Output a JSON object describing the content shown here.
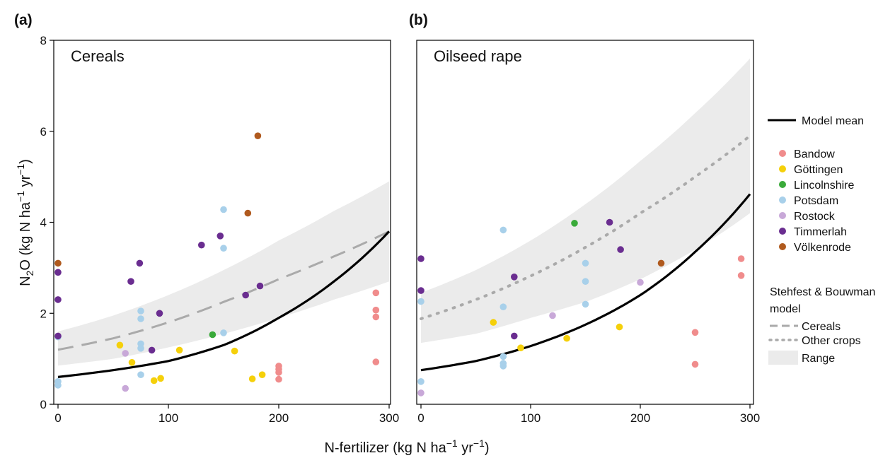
{
  "chart_data": [
    {
      "type": "scatter",
      "panel_label": "(a)",
      "title": "Cereals",
      "xlim": [
        0,
        300
      ],
      "ylim": [
        0,
        8
      ],
      "xticks": [
        "0",
        "100",
        "200",
        "300"
      ],
      "yticks": [
        "0",
        "2",
        "4",
        "6",
        "8"
      ],
      "grid": false,
      "series": [
        {
          "name": "Bandow",
          "color": "#f08c8c",
          "x": [
            288,
            288,
            288,
            288,
            200,
            200,
            200,
            200
          ],
          "y": [
            2.45,
            2.07,
            1.92,
            0.93,
            0.84,
            0.77,
            0.7,
            0.55
          ]
        },
        {
          "name": "Göttingen",
          "color": "#f5d00a",
          "x": [
            56,
            67,
            87,
            93,
            110,
            160,
            176,
            185
          ],
          "y": [
            1.3,
            0.92,
            0.52,
            0.57,
            1.19,
            1.17,
            0.56,
            0.65
          ]
        },
        {
          "name": "Lincolnshire",
          "color": "#3aaa3a",
          "x": [
            140
          ],
          "y": [
            1.53
          ]
        },
        {
          "name": "Potsdam",
          "color": "#a8d0ea",
          "x": [
            0,
            0,
            0,
            75,
            75,
            75,
            75,
            75,
            150,
            150,
            150
          ],
          "y": [
            0.5,
            0.42,
            1.48,
            2.05,
            1.88,
            1.33,
            1.23,
            0.65,
            4.28,
            3.43,
            1.57
          ]
        },
        {
          "name": "Rostock",
          "color": "#c8a8d8",
          "x": [
            61,
            61
          ],
          "y": [
            1.12,
            0.35
          ]
        },
        {
          "name": "Timmerlah",
          "color": "#6a2d90",
          "x": [
            0,
            0,
            0,
            66,
            74,
            85,
            92,
            130,
            147,
            170,
            183
          ],
          "y": [
            2.9,
            2.3,
            1.5,
            2.7,
            3.1,
            1.19,
            2.0,
            3.5,
            3.7,
            2.4,
            2.6
          ]
        },
        {
          "name": "Völkenrode",
          "color": "#b05a1e",
          "x": [
            0,
            172,
            181
          ],
          "y": [
            3.1,
            4.2,
            5.9
          ]
        }
      ],
      "model_mean": {
        "name": "Model mean",
        "x": [
          0,
          50,
          100,
          150,
          200,
          250,
          300
        ],
        "y": [
          0.6,
          0.75,
          0.95,
          1.3,
          1.9,
          2.7,
          3.8
        ]
      },
      "reference_curve": {
        "name": "Cereals",
        "x": [
          0,
          50,
          100,
          150,
          200,
          250,
          300
        ],
        "y": [
          1.2,
          1.45,
          1.8,
          2.25,
          2.75,
          3.25,
          3.8
        ]
      },
      "range_band": {
        "name": "Range",
        "x": [
          0,
          50,
          100,
          150,
          200,
          250,
          300
        ],
        "upper": [
          1.6,
          1.95,
          2.4,
          2.95,
          3.6,
          4.25,
          4.9
        ],
        "lower": [
          0.85,
          1.0,
          1.25,
          1.55,
          1.9,
          2.3,
          2.7
        ]
      }
    },
    {
      "type": "scatter",
      "panel_label": "(b)",
      "title": "Oilseed rape",
      "xlim": [
        0,
        300
      ],
      "ylim": [
        0,
        8
      ],
      "xticks": [
        "0",
        "100",
        "200",
        "300"
      ],
      "yticks": [
        "0",
        "2",
        "4",
        "6",
        "8"
      ],
      "grid": false,
      "series": [
        {
          "name": "Bandow",
          "color": "#f08c8c",
          "x": [
            292,
            292,
            250,
            250
          ],
          "y": [
            3.2,
            2.83,
            1.58,
            0.88
          ]
        },
        {
          "name": "Göttingen",
          "color": "#f5d00a",
          "x": [
            66,
            91,
            133,
            181
          ],
          "y": [
            1.8,
            1.24,
            1.45,
            1.7
          ]
        },
        {
          "name": "Lincolnshire",
          "color": "#3aaa3a",
          "x": [
            140
          ],
          "y": [
            3.98
          ]
        },
        {
          "name": "Potsdam",
          "color": "#a8d0ea",
          "x": [
            0,
            0,
            75,
            75,
            75,
            75,
            75,
            150,
            150,
            150
          ],
          "y": [
            2.26,
            0.5,
            3.83,
            2.14,
            1.05,
            0.9,
            0.84,
            3.1,
            2.7,
            2.2
          ]
        },
        {
          "name": "Rostock",
          "color": "#c8a8d8",
          "x": [
            0,
            120,
            200
          ],
          "y": [
            0.25,
            1.95,
            2.68
          ]
        },
        {
          "name": "Timmerlah",
          "color": "#6a2d90",
          "x": [
            0,
            0,
            85,
            85,
            172,
            182
          ],
          "y": [
            3.2,
            2.5,
            2.8,
            1.5,
            4.0,
            3.4
          ]
        },
        {
          "name": "Völkenrode",
          "color": "#b05a1e",
          "x": [
            219
          ],
          "y": [
            3.1
          ]
        }
      ],
      "model_mean": {
        "name": "Model mean",
        "x": [
          0,
          50,
          100,
          150,
          200,
          250,
          300
        ],
        "y": [
          0.75,
          0.95,
          1.28,
          1.75,
          2.4,
          3.35,
          4.62
        ]
      },
      "reference_curve": {
        "name": "Other crops",
        "x": [
          0,
          50,
          100,
          150,
          200,
          250,
          300
        ],
        "y": [
          1.88,
          2.3,
          2.82,
          3.45,
          4.2,
          5.0,
          5.9
        ]
      },
      "range_band": {
        "name": "Range",
        "x": [
          0,
          50,
          100,
          150,
          200,
          250,
          300
        ],
        "upper": [
          2.45,
          2.95,
          3.6,
          4.4,
          5.35,
          6.4,
          7.6
        ],
        "lower": [
          1.35,
          1.55,
          1.9,
          2.25,
          2.75,
          3.4,
          4.2
        ]
      }
    }
  ],
  "axis_titles": {
    "y": "N2O (kg N ha−1 yr−1)",
    "x": "N-fertilizer (kg N ha−1 yr−1)"
  },
  "legend": {
    "model_mean": "Model mean",
    "sites": [
      {
        "name": "Bandow",
        "color": "#f08c8c"
      },
      {
        "name": "Göttingen",
        "color": "#f5d00a"
      },
      {
        "name": "Lincolnshire",
        "color": "#3aaa3a"
      },
      {
        "name": "Potsdam",
        "color": "#a8d0ea"
      },
      {
        "name": "Rostock",
        "color": "#c8a8d8"
      },
      {
        "name": "Timmerlah",
        "color": "#6a2d90"
      },
      {
        "name": "Völkenrode",
        "color": "#b05a1e"
      }
    ],
    "reference_title_line1": "Stehfest & Bouwman",
    "reference_title_line2": "model",
    "cereals": "Cereals",
    "other_crops": "Other crops",
    "range": "Range"
  },
  "colors": {
    "band": "#ebebeb",
    "model_mean": "#000000",
    "reference_line": "#aaaaaa"
  }
}
